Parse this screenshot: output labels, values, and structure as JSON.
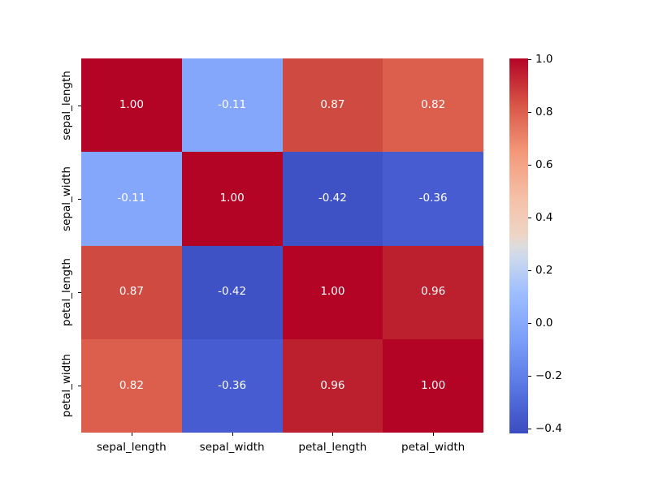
{
  "figure": {
    "background": "#ffffff",
    "title": ""
  },
  "chart_data": {
    "type": "heatmap",
    "title": "",
    "xlabel": "",
    "ylabel": "",
    "x_categories": [
      "sepal_length",
      "sepal_width",
      "petal_length",
      "petal_width"
    ],
    "y_categories": [
      "sepal_length",
      "sepal_width",
      "petal_length",
      "petal_width"
    ],
    "matrix": [
      [
        1.0,
        -0.11,
        0.87,
        0.82
      ],
      [
        -0.11,
        1.0,
        -0.42,
        -0.36
      ],
      [
        0.87,
        -0.42,
        1.0,
        0.96
      ],
      [
        0.82,
        -0.36,
        0.96,
        1.0
      ]
    ],
    "cell_labels": [
      [
        "1.00",
        "-0.11",
        "0.87",
        "0.82"
      ],
      [
        "-0.11",
        "1.00",
        "-0.42",
        "-0.36"
      ],
      [
        "0.87",
        "-0.42",
        "1.00",
        "0.96"
      ],
      [
        "0.82",
        "-0.36",
        "0.96",
        "1.00"
      ]
    ],
    "value_colors": {
      "1.00": "#b40426",
      "0.96": "#bc202e",
      "0.87": "#cf4a41",
      "0.82": "#dc5f4e",
      "-0.11": "#84a7fc",
      "-0.36": "#485cd1",
      "-0.42": "#3e51c5"
    },
    "annotation_text_color": "#ffffff",
    "axis_text_color": "#000000",
    "grid": false,
    "colormap": "coolwarm",
    "colorbar": {
      "position": "right",
      "vmin": -0.42,
      "vmax": 1.0,
      "tick_labels": [
        "1.0",
        "0.8",
        "0.6",
        "0.4",
        "0.2",
        "0.0",
        "−0.2",
        "−0.4"
      ],
      "tick_values": [
        1.0,
        0.8,
        0.6,
        0.4,
        0.2,
        0.0,
        -0.2,
        -0.4
      ],
      "gradient_stops": [
        "#3b4cc0 0%",
        "#5977e3 12.5%",
        "#7b9ff9 25%",
        "#9ebeff 37.5%",
        "#cdd9ec 47%",
        "#dddcdc 50%",
        "#eed4c4 53%",
        "#f5c1a9 62.5%",
        "#f39879 75%",
        "#d85646 87.5%",
        "#b40426 100%"
      ]
    }
  }
}
